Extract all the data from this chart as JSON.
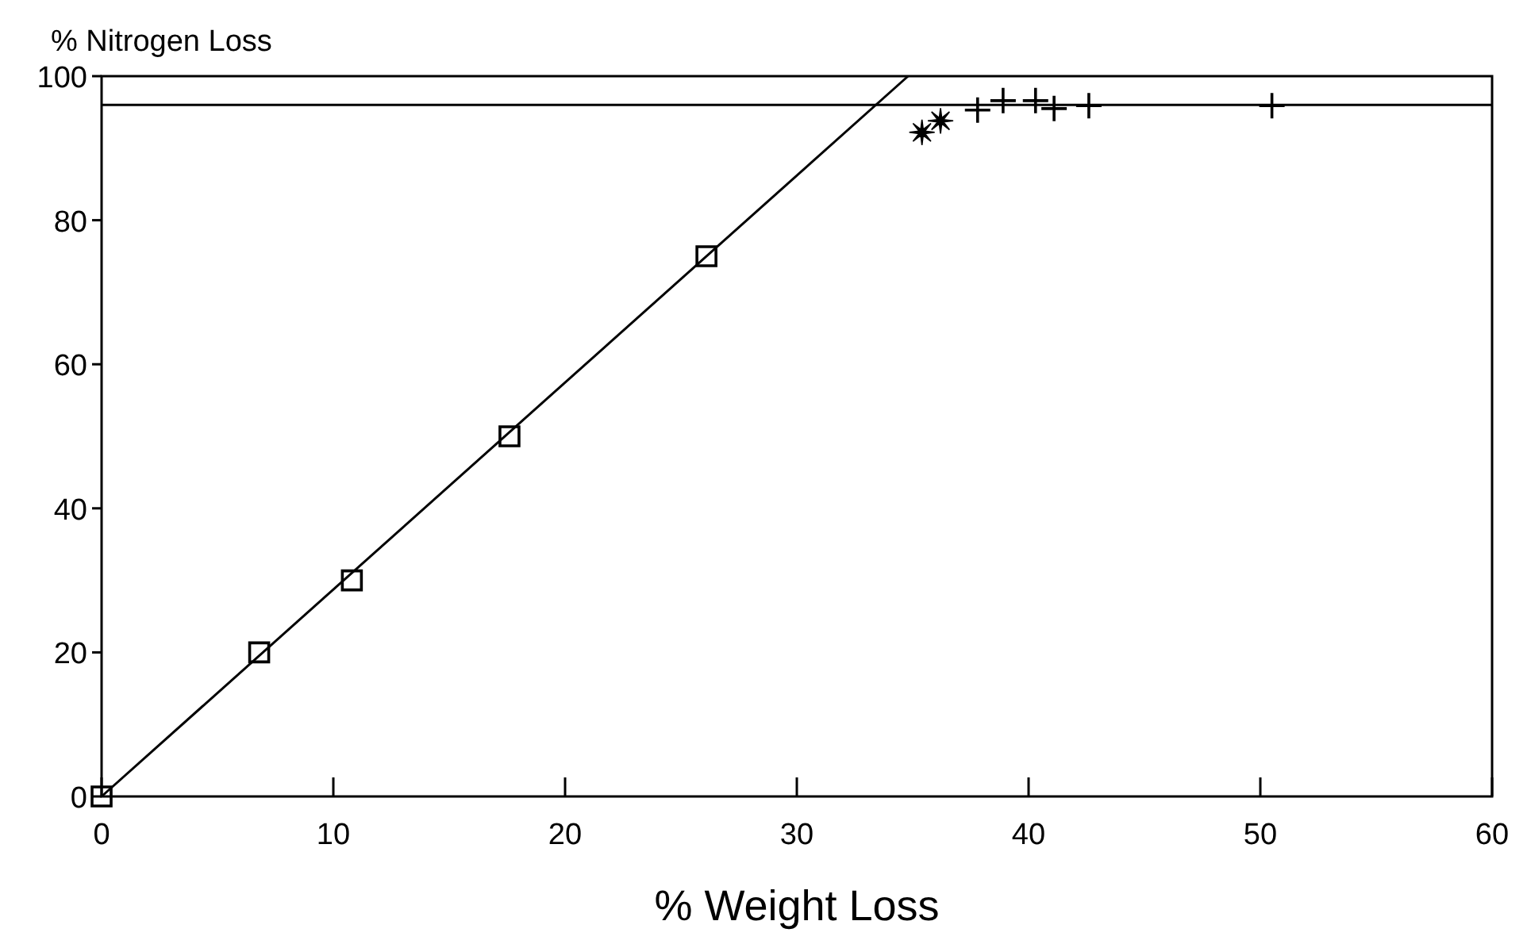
{
  "chart_data": {
    "type": "scatter",
    "xlabel": "% Weight Loss",
    "ylabel": "% Nitrogen Loss",
    "xlim": [
      0,
      60
    ],
    "xticks": [
      0,
      10,
      20,
      30,
      40,
      50,
      60
    ],
    "ylim": [
      0,
      100
    ],
    "yticks": [
      0,
      20,
      40,
      60,
      80,
      100
    ],
    "grid": false,
    "series": [
      {
        "marker": "square",
        "color": "#000000",
        "x": [
          0,
          6.8,
          10.8,
          17.6,
          26.1
        ],
        "values": [
          0,
          20,
          30,
          50,
          75
        ]
      },
      {
        "marker": "star",
        "color": "#000000",
        "x": [
          35.4,
          36.2
        ],
        "values": [
          92.2,
          93.8
        ]
      },
      {
        "marker": "cross",
        "color": "#000000",
        "x": [
          37.8,
          38.9,
          40.3,
          41.1,
          42.6,
          50.5
        ],
        "values": [
          95.3,
          96.6,
          96.6,
          95.5,
          95.9,
          95.9
        ]
      },
      {
        "type": "line",
        "marker": "none",
        "line_style": "solid",
        "color": "#000000",
        "x": [
          0,
          34.8
        ],
        "values": [
          0,
          100
        ]
      }
    ],
    "ref_lines": [
      {
        "axis": "y",
        "value": 96,
        "color": "#000000"
      }
    ]
  }
}
